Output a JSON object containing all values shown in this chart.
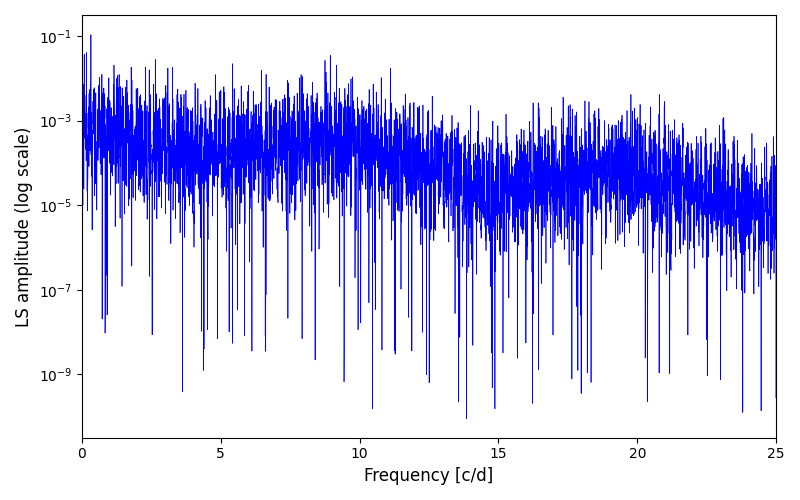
{
  "title": "",
  "xlabel": "Frequency [c/d]",
  "ylabel": "LS amplitude (log scale)",
  "xlim": [
    0,
    25
  ],
  "ylim_log": [
    -10.5,
    -0.5
  ],
  "line_color": "#0000ff",
  "background_color": "#ffffff",
  "figsize": [
    8.0,
    5.0
  ],
  "dpi": 100,
  "xlabel_fontsize": 12,
  "ylabel_fontsize": 12,
  "seed": 42,
  "n_points": 5000,
  "freq_max": 25.0
}
